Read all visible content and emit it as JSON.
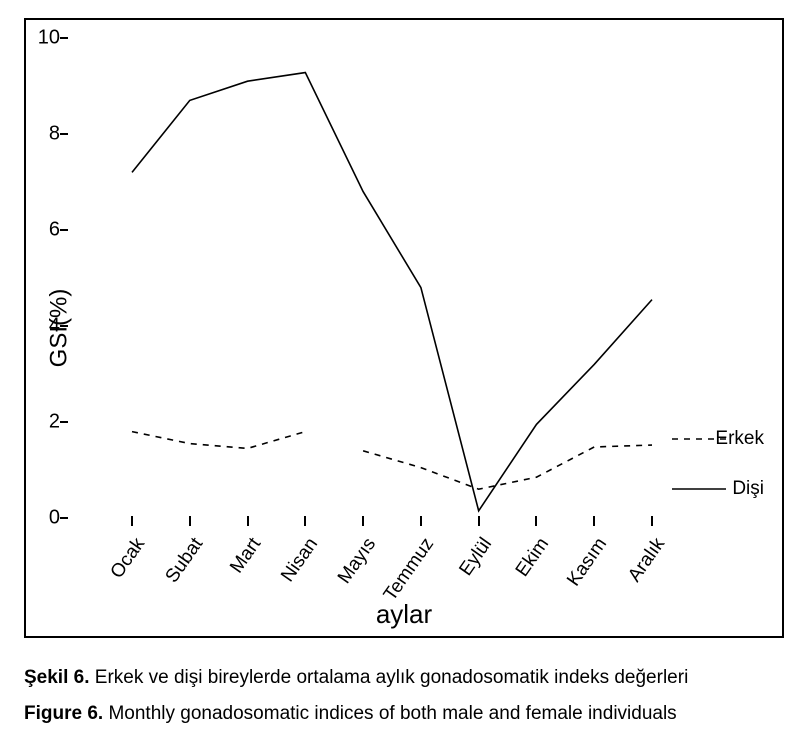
{
  "chart": {
    "type": "line",
    "background_color": "#ffffff",
    "frame_border_color": "#000000",
    "y": {
      "label": "GSI(%)",
      "min": 0,
      "max": 10,
      "tick_step": 2,
      "ticks": [
        0,
        2,
        4,
        6,
        8,
        10
      ],
      "label_fontsize": 24,
      "tick_fontsize": 20
    },
    "x": {
      "label": "aylar",
      "categories": [
        "Ocak",
        "Subat",
        "Mart",
        "Nisan",
        "Mayıs",
        "Temmuz",
        "Eylül",
        "Ekim",
        "Kasım",
        "Aralık"
      ],
      "label_fontsize": 26,
      "tick_fontsize": 19,
      "tick_rotation_deg": -55
    },
    "series": [
      {
        "name": "Erkek",
        "style": "dashed",
        "color": "#000000",
        "line_width": 1.6,
        "dash_pattern": "6 6",
        "values": [
          1.8,
          1.55,
          1.45,
          1.8,
          1.4,
          1.05,
          0.6,
          0.85,
          1.48,
          1.52
        ],
        "break_after_index": 3
      },
      {
        "name": "Dişi",
        "style": "solid",
        "color": "#000000",
        "line_width": 1.6,
        "values": [
          7.2,
          8.7,
          9.1,
          9.28,
          6.8,
          4.8,
          0.15,
          1.95,
          3.2,
          4.55
        ]
      }
    ],
    "legend": {
      "position": "right-middle",
      "entries": [
        {
          "label": "Erkek",
          "style": "dashed"
        },
        {
          "label": "Dişi",
          "style": "solid"
        }
      ],
      "fontsize": 19
    }
  },
  "captions": {
    "tr_prefix": "Şekil 6.",
    "tr_text": " Erkek ve dişi bireylerde ortalama aylık gonadosomatik indeks değerleri",
    "en_prefix": "Figure 6.",
    "en_text": " Monthly gonadosomatic indices of both male and female individuals"
  }
}
